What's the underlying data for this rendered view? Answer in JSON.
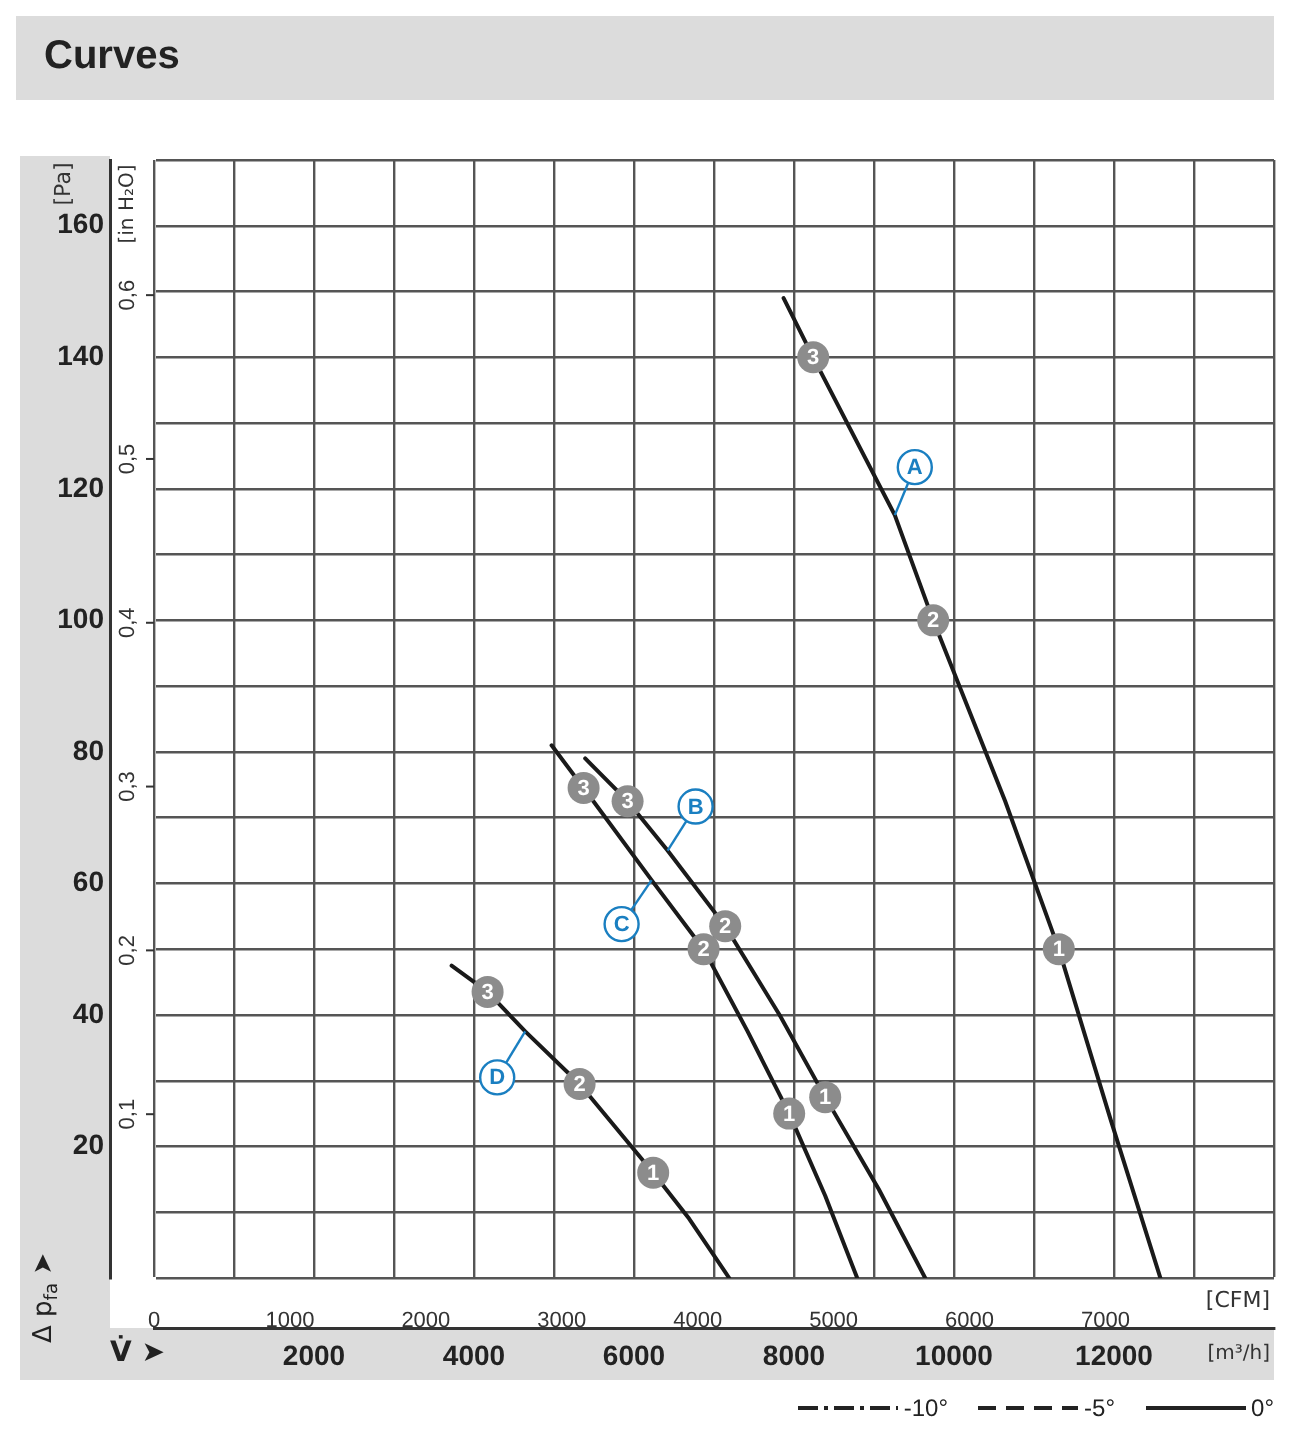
{
  "chart_data": {
    "type": "line",
    "title": "Curves",
    "ylabel": "[Pa]",
    "y2label": "[in H₂O]",
    "xlabel": "[m³/h]",
    "x2label": "[CFM]",
    "annotations": [
      "Δ p$_{fa}$ ➤",
      "V̇ ➤",
      "-10°",
      "-5°",
      "0°",
      {
        "text": "3",
        "x": 8240,
        "y": 140
      },
      {
        "text": "2",
        "x": 9740,
        "y": 100
      },
      {
        "text": "1",
        "x": 11310,
        "y": 50
      },
      {
        "text": "3",
        "x": 5920,
        "y": 72.5
      },
      {
        "text": "2",
        "x": 7140,
        "y": 53.5
      },
      {
        "text": "1",
        "x": 8390,
        "y": 27.5
      },
      {
        "text": "3",
        "x": 5370,
        "y": 74.5
      },
      {
        "text": "2",
        "x": 6870,
        "y": 50
      },
      {
        "text": "1",
        "x": 7940,
        "y": 25
      },
      {
        "text": "3",
        "x": 4170,
        "y": 43.5
      },
      {
        "text": "2",
        "x": 5320,
        "y": 29.5
      },
      {
        "text": "1",
        "x": 6240,
        "y": 16
      }
    ],
    "series": [
      {
        "name": "A",
        "color": "#1a1a1a",
        "x": [
          7870,
          8240,
          9260,
          9740,
          10640,
          11310,
          11960,
          12580
        ],
        "values": [
          149,
          140,
          116,
          100,
          72.5,
          50,
          24,
          0
        ]
      },
      {
        "name": "B",
        "color": "#1a1a1a",
        "x": [
          5390,
          5920,
          6420,
          7140,
          7820,
          8390,
          9060,
          9640
        ],
        "values": [
          79,
          72.5,
          65,
          53.5,
          40,
          27.5,
          13.5,
          0
        ]
      },
      {
        "name": "C",
        "color": "#1a1a1a",
        "x": [
          4970,
          5370,
          6220,
          6870,
          7420,
          7940,
          8390,
          8790
        ],
        "values": [
          81,
          74.5,
          60.5,
          50,
          37.5,
          25,
          12.5,
          0
        ]
      },
      {
        "name": "D",
        "color": "#1a1a1a",
        "x": [
          3720,
          4170,
          4640,
          5320,
          6240,
          6690,
          7190
        ],
        "values": [
          47.5,
          43.5,
          37.5,
          29.5,
          16,
          9,
          0
        ]
      }
    ],
    "xlim": [
      0,
      14000
    ],
    "xticks": [
      {
        "value": 0,
        "label": null
      },
      {
        "value": 1000,
        "label": null
      },
      2000,
      {
        "value": 3000,
        "label": null
      },
      4000,
      {
        "value": 5000,
        "label": null
      },
      6000,
      {
        "value": 7000,
        "label": null
      },
      8000,
      {
        "value": 9000,
        "label": null
      },
      10000,
      {
        "value": 11000,
        "label": null
      },
      12000,
      {
        "value": 13000,
        "label": null
      },
      {
        "value": 14000,
        "label": null
      }
    ],
    "x2lim": [
      0,
      8240
    ],
    "x2ticks": [
      0,
      1000,
      2000,
      3000,
      4000,
      5000,
      6000,
      7000
    ],
    "ylim": [
      0,
      170
    ],
    "yticks": [
      {
        "value": 0,
        "label": null
      },
      {
        "value": 10,
        "label": null
      },
      20,
      {
        "value": 30,
        "label": null
      },
      40,
      {
        "value": 50,
        "label": null
      },
      60,
      {
        "value": 70,
        "label": null
      },
      80,
      {
        "value": 90,
        "label": null
      },
      100,
      {
        "value": 110,
        "label": null
      },
      120,
      {
        "value": 130,
        "label": null
      },
      140,
      {
        "value": 150,
        "label": null
      },
      160,
      {
        "value": 170,
        "label": null
      }
    ],
    "y2lim": [
      0,
      0.6825
    ],
    "y2ticks": [
      {
        "value": 0.1,
        "label": "0,1"
      },
      {
        "value": 0.2,
        "label": "0,2"
      },
      {
        "value": 0.3,
        "label": "0,3"
      },
      {
        "value": 0.4,
        "label": "0,4"
      },
      {
        "value": 0.5,
        "label": "0,5"
      },
      {
        "value": 0.6,
        "label": "0,6"
      }
    ],
    "grid": true,
    "legend": false,
    "marker": "none",
    "line_style": "solid"
  }
}
